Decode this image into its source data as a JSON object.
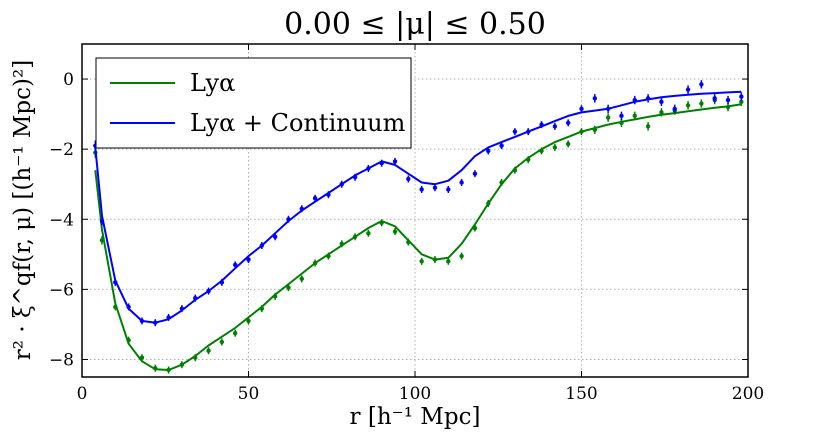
{
  "chart_data": {
    "type": "line",
    "title": "0.00 ≤ |μ| ≤ 0.50",
    "xlabel": "r [h⁻¹ Mpc]",
    "ylabel": "r² · ξ^qf(r, μ) [(h⁻¹ Mpc)²]",
    "xlim": [
      0,
      200
    ],
    "ylim": [
      -8.5,
      1.0
    ],
    "xticks": [
      "0",
      "50",
      "100",
      "150",
      "200"
    ],
    "yticks": [
      "0",
      "−2",
      "−4",
      "−6",
      "−8"
    ],
    "xtick_values": [
      0,
      50,
      100,
      150,
      200
    ],
    "ytick_values": [
      0,
      -2,
      -4,
      -6,
      -8
    ],
    "grid": true,
    "legend_position": "top-left",
    "series": [
      {
        "name": "Lyα",
        "color": "#008000",
        "model_x": [
          4,
          6,
          10,
          14,
          18,
          22,
          26,
          30,
          34,
          38,
          42,
          46,
          50,
          54,
          58,
          62,
          66,
          70,
          74,
          78,
          82,
          86,
          90,
          94,
          98,
          102,
          106,
          110,
          114,
          118,
          122,
          126,
          130,
          134,
          138,
          142,
          146,
          150,
          154,
          158,
          162,
          166,
          170,
          174,
          178,
          182,
          186,
          190,
          194,
          198
        ],
        "model_y": [
          -2.6,
          -4.3,
          -6.4,
          -7.55,
          -8.05,
          -8.28,
          -8.3,
          -8.15,
          -7.9,
          -7.6,
          -7.35,
          -7.1,
          -6.8,
          -6.5,
          -6.15,
          -5.85,
          -5.55,
          -5.25,
          -5.0,
          -4.75,
          -4.5,
          -4.25,
          -4.05,
          -4.2,
          -4.6,
          -5.0,
          -5.15,
          -5.1,
          -4.7,
          -4.15,
          -3.55,
          -3.0,
          -2.55,
          -2.25,
          -2.0,
          -1.8,
          -1.65,
          -1.5,
          -1.4,
          -1.3,
          -1.22,
          -1.15,
          -1.08,
          -1.02,
          -0.97,
          -0.92,
          -0.87,
          -0.82,
          -0.78,
          -0.72
        ],
        "data_x": [
          4,
          6,
          10,
          14,
          18,
          22,
          26,
          30,
          34,
          38,
          42,
          46,
          50,
          54,
          58,
          62,
          66,
          70,
          74,
          78,
          82,
          86,
          90,
          94,
          98,
          102,
          106,
          110,
          114,
          118,
          122,
          126,
          130,
          134,
          138,
          142,
          146,
          150,
          154,
          158,
          162,
          166,
          170,
          174,
          178,
          182,
          186,
          190,
          194,
          198
        ],
        "data_y": [
          -2.1,
          -4.6,
          -6.5,
          -7.45,
          -7.95,
          -8.25,
          -8.3,
          -8.15,
          -7.95,
          -7.75,
          -7.5,
          -7.25,
          -6.9,
          -6.55,
          -6.2,
          -5.95,
          -5.7,
          -5.25,
          -5.05,
          -4.7,
          -4.5,
          -4.4,
          -4.1,
          -4.35,
          -4.65,
          -5.2,
          -5.15,
          -5.2,
          -5.05,
          -4.25,
          -3.55,
          -2.95,
          -2.6,
          -2.3,
          -2.05,
          -1.95,
          -1.85,
          -1.5,
          -1.45,
          -1.1,
          -1.25,
          -1.05,
          -1.35,
          -0.95,
          -0.9,
          -0.75,
          -0.7,
          -0.6,
          -0.8,
          -0.65
        ],
        "data_err": [
          0.15,
          0.12,
          0.1,
          0.1,
          0.1,
          0.1,
          0.1,
          0.1,
          0.1,
          0.1,
          0.1,
          0.1,
          0.1,
          0.1,
          0.1,
          0.1,
          0.1,
          0.1,
          0.1,
          0.1,
          0.1,
          0.1,
          0.1,
          0.1,
          0.1,
          0.1,
          0.1,
          0.1,
          0.1,
          0.1,
          0.1,
          0.1,
          0.1,
          0.1,
          0.1,
          0.1,
          0.1,
          0.1,
          0.12,
          0.12,
          0.12,
          0.12,
          0.12,
          0.12,
          0.12,
          0.12,
          0.12,
          0.12,
          0.12,
          0.12
        ]
      },
      {
        "name": "Lyα + Continuum",
        "color": "#0000ff",
        "model_x": [
          4,
          6,
          10,
          14,
          18,
          22,
          26,
          30,
          34,
          38,
          42,
          46,
          50,
          54,
          58,
          62,
          66,
          70,
          74,
          78,
          82,
          86,
          90,
          94,
          98,
          102,
          106,
          110,
          114,
          118,
          122,
          126,
          130,
          134,
          138,
          142,
          146,
          150,
          154,
          158,
          162,
          166,
          170,
          174,
          178,
          182,
          186,
          190,
          194,
          198
        ],
        "model_y": [
          -1.95,
          -3.9,
          -5.75,
          -6.55,
          -6.9,
          -6.95,
          -6.85,
          -6.6,
          -6.3,
          -6.05,
          -5.75,
          -5.4,
          -5.05,
          -4.75,
          -4.4,
          -4.05,
          -3.75,
          -3.5,
          -3.25,
          -3.0,
          -2.75,
          -2.55,
          -2.35,
          -2.45,
          -2.7,
          -2.95,
          -3.0,
          -2.9,
          -2.6,
          -2.2,
          -1.95,
          -1.8,
          -1.65,
          -1.5,
          -1.35,
          -1.2,
          -1.05,
          -0.95,
          -0.9,
          -0.85,
          -0.75,
          -0.65,
          -0.58,
          -0.52,
          -0.48,
          -0.45,
          -0.42,
          -0.4,
          -0.38,
          -0.36
        ],
        "data_x": [
          4,
          6,
          10,
          14,
          18,
          22,
          26,
          30,
          34,
          38,
          42,
          46,
          50,
          54,
          58,
          62,
          66,
          70,
          74,
          78,
          82,
          86,
          90,
          94,
          98,
          102,
          106,
          110,
          114,
          118,
          122,
          126,
          130,
          134,
          138,
          142,
          146,
          150,
          154,
          158,
          162,
          166,
          170,
          174,
          178,
          182,
          186,
          190,
          194,
          198
        ],
        "data_y": [
          -1.9,
          -4.05,
          -5.8,
          -6.5,
          -6.9,
          -6.95,
          -6.8,
          -6.55,
          -6.25,
          -6.05,
          -5.8,
          -5.3,
          -5.15,
          -4.75,
          -4.5,
          -4.0,
          -3.7,
          -3.4,
          -3.3,
          -3.0,
          -2.8,
          -2.55,
          -2.4,
          -2.35,
          -2.85,
          -3.15,
          -3.1,
          -3.15,
          -2.95,
          -2.7,
          -2.05,
          -1.9,
          -1.5,
          -1.5,
          -1.3,
          -1.35,
          -1.25,
          -0.85,
          -0.55,
          -0.85,
          -1.05,
          -0.6,
          -0.55,
          -0.65,
          -0.85,
          -0.3,
          -0.15,
          -0.55,
          -0.6,
          -0.5
        ],
        "data_err": [
          0.15,
          0.12,
          0.1,
          0.1,
          0.1,
          0.1,
          0.1,
          0.1,
          0.1,
          0.1,
          0.1,
          0.1,
          0.1,
          0.1,
          0.1,
          0.1,
          0.1,
          0.1,
          0.1,
          0.1,
          0.1,
          0.1,
          0.1,
          0.1,
          0.1,
          0.1,
          0.1,
          0.1,
          0.1,
          0.1,
          0.1,
          0.1,
          0.1,
          0.1,
          0.1,
          0.1,
          0.1,
          0.1,
          0.12,
          0.12,
          0.12,
          0.12,
          0.12,
          0.12,
          0.12,
          0.12,
          0.12,
          0.12,
          0.12,
          0.12
        ]
      }
    ]
  }
}
